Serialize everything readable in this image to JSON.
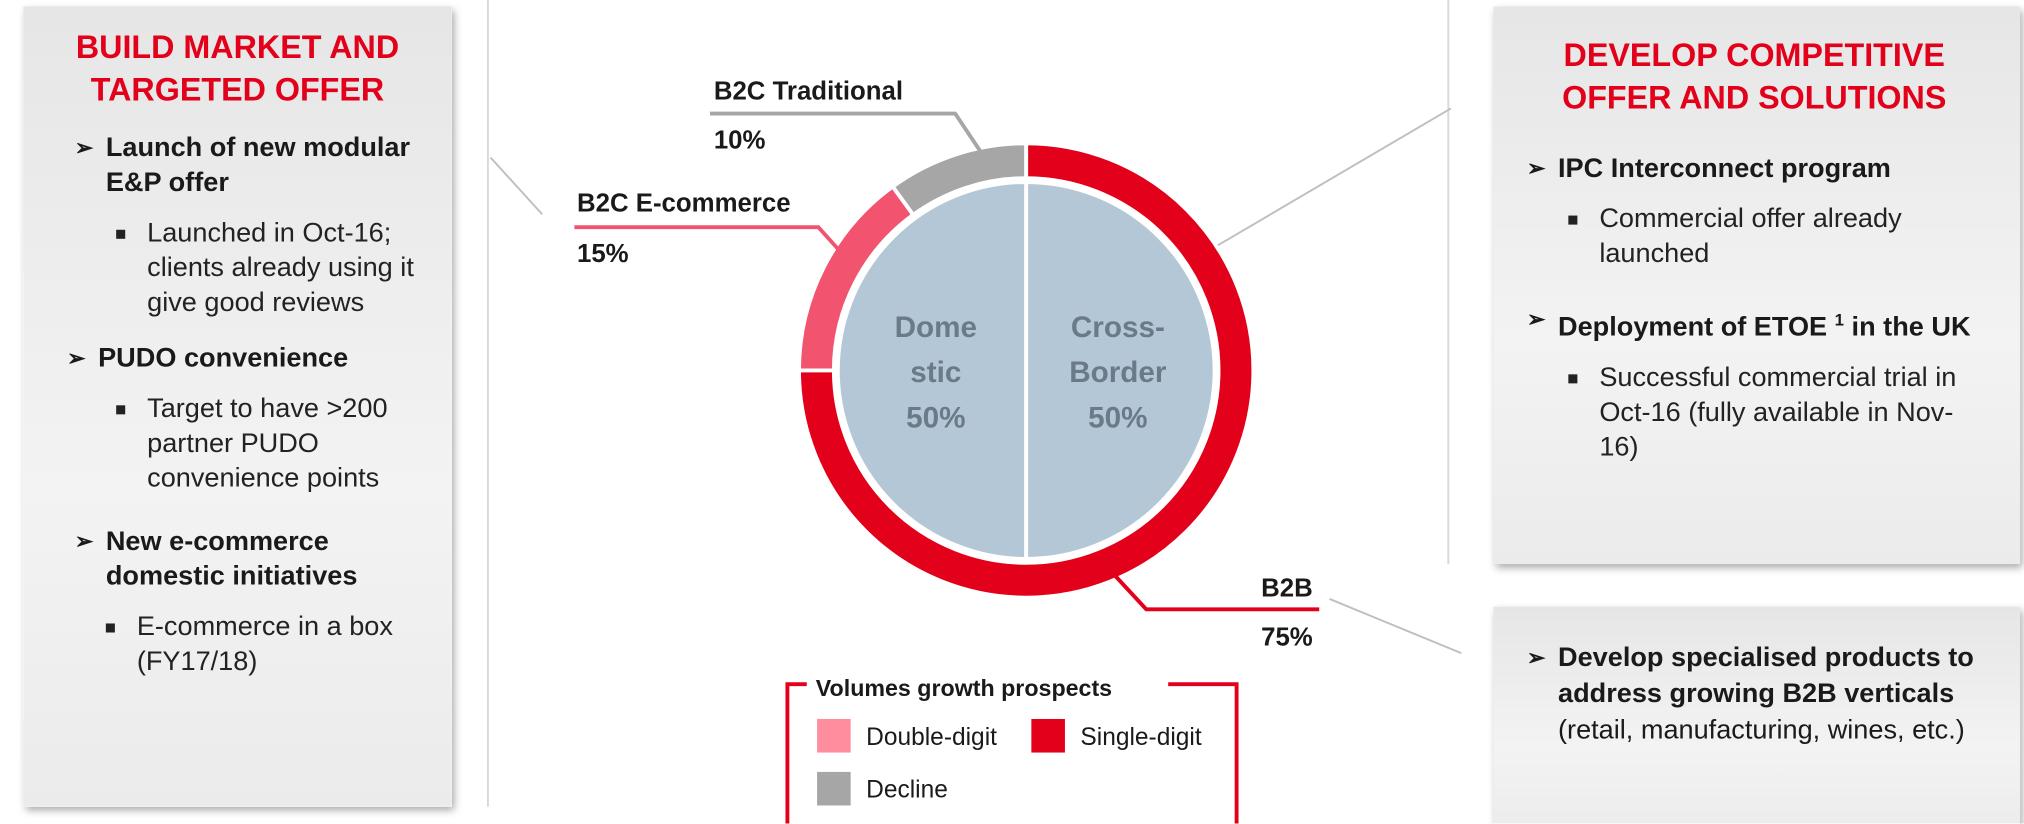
{
  "chart_data": {
    "type": "pie",
    "outer": {
      "categories": [
        "B2C Traditional",
        "B2C E-commerce",
        "B2B"
      ],
      "values": [
        10,
        15,
        75
      ],
      "value_labels": [
        "10%",
        "15%",
        "75%"
      ],
      "colors": [
        "#a6a6a6",
        "#f2546f",
        "#e2001a"
      ]
    },
    "inner": {
      "categories": [
        [
          "Dome",
          "stic"
        ],
        [
          "Cross-",
          "Border"
        ]
      ],
      "values": [
        50,
        50
      ],
      "value_labels": [
        "50%",
        "50%"
      ],
      "color": "#b4c7d7"
    },
    "legend": {
      "title": "Volumes growth prospects",
      "items": [
        {
          "name": "Double-digit",
          "color": "#ff8d9e"
        },
        {
          "name": "Single-digit",
          "color": "#e2001a"
        },
        {
          "name": "Decline",
          "color": "#a6a6a6"
        }
      ]
    }
  },
  "left_panel": {
    "title": "BUILD MARKET AND TARGETED OFFER",
    "items": [
      {
        "heading": "Launch of new modular E&P offer",
        "bullets": [
          "Launched in Oct-16; clients already using it give good reviews"
        ]
      },
      {
        "heading": "PUDO convenience",
        "bullets": [
          "Target to have >200 partner PUDO convenience points"
        ]
      },
      {
        "heading": "New e-commerce domestic initiatives",
        "bullets": [
          "E-commerce in a box (FY17/18)"
        ]
      }
    ]
  },
  "right_top_panel": {
    "title": "DEVELOP COMPETITIVE OFFER AND SOLUTIONS",
    "items": [
      {
        "heading": "IPC Interconnect program",
        "bullets": [
          "Commercial offer already launched"
        ]
      },
      {
        "heading": [
          "Deployment of ETOE",
          "1",
          "in the UK"
        ],
        "bullets": [
          "Successful commercial trial in Oct-16 (fully available in Nov-16)"
        ]
      }
    ]
  },
  "right_bottom_panel": {
    "items": [
      {
        "heading": [
          "Develop specialised products to address growing B2B verticals",
          "(retail, manufacturing, wines, etc.)"
        ]
      }
    ]
  }
}
